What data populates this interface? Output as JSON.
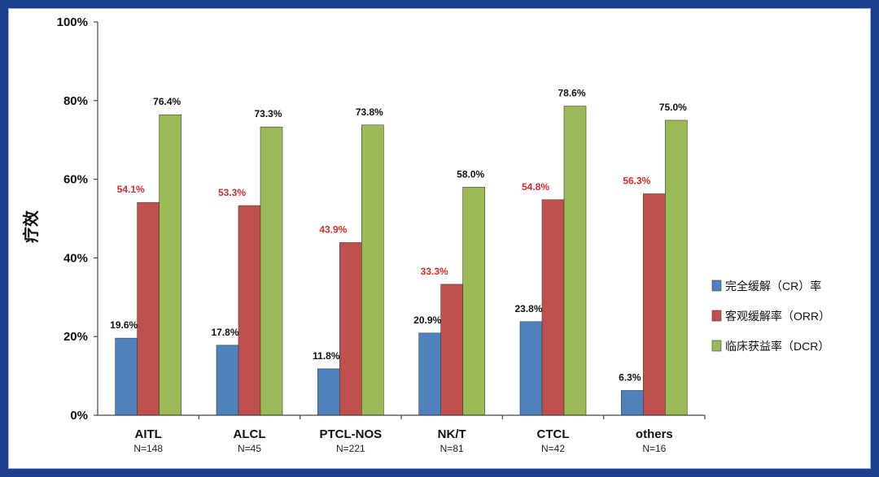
{
  "chart_data": {
    "type": "bar",
    "title": "",
    "xlabel": "",
    "ylabel": "疗效",
    "ylim": [
      0,
      100
    ],
    "yticks": [
      "0%",
      "20%",
      "40%",
      "60%",
      "80%",
      "100%"
    ],
    "yticks_values": [
      0,
      20,
      40,
      60,
      80,
      100
    ],
    "categories": [
      "AITL",
      "ALCL",
      "PTCL-NOS",
      "NK/T",
      "CTCL",
      "others"
    ],
    "sample_sizes": [
      "N=148",
      "N=45",
      "N=221",
      "N=81",
      "N=42",
      "N=16"
    ],
    "series": [
      {
        "name": "完全缓解（CR）率",
        "color": "#4f81bd",
        "label_color": "#111111",
        "values": [
          19.6,
          17.8,
          11.8,
          20.9,
          23.8,
          6.3
        ],
        "labels": [
          "19.6%",
          "17.8%",
          "11.8%",
          "20.9%",
          "23.8%",
          "6.3%"
        ]
      },
      {
        "name": "客观缓解率（ORR）",
        "color": "#c0504d",
        "label_color": "#d42b2b",
        "values": [
          54.1,
          53.3,
          43.9,
          33.3,
          54.8,
          56.3
        ],
        "labels": [
          "54.1%",
          "53.3%",
          "43.9%",
          "33.3%",
          "54.8%",
          "56.3%"
        ]
      },
      {
        "name": "临床获益率（DCR）",
        "color": "#9bbb59",
        "label_color": "#111111",
        "values": [
          76.4,
          73.3,
          73.8,
          58.0,
          78.6,
          75.0
        ],
        "labels": [
          "76.4%",
          "73.3%",
          "73.8%",
          "58.0%",
          "78.6%",
          "75.0%"
        ]
      }
    ],
    "legend_position": "right"
  }
}
